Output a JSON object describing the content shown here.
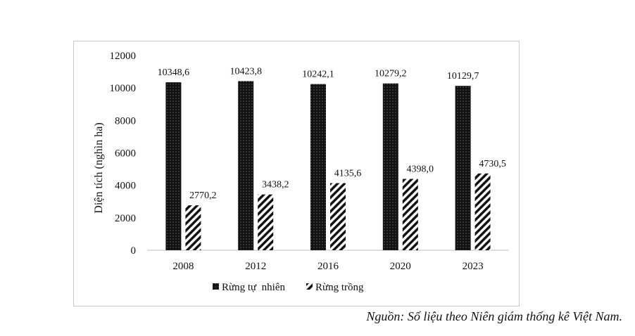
{
  "chart_data": {
    "type": "bar",
    "categories": [
      "2008",
      "2012",
      "2016",
      "2020",
      "2023"
    ],
    "series": [
      {
        "name": "Rừng tự  nhiên",
        "values": [
          10348.6,
          10423.8,
          10242.1,
          10279.2,
          10129.7
        ],
        "labels": [
          "10348,6",
          "10423,8",
          "10242,1",
          "10279,2",
          "10129,7"
        ],
        "pattern": "dotted-black"
      },
      {
        "name": "Rừng trồng",
        "values": [
          2770.2,
          3438.2,
          4135.6,
          4398.0,
          4730.5
        ],
        "labels": [
          "2770,2",
          "3438,2",
          "4135,6",
          "4398,0",
          "4730,5"
        ],
        "pattern": "diagonal-hatch"
      }
    ],
    "ylabel": "Diện tích (nghìn ha)",
    "xlabel": "",
    "ylim": [
      0,
      12000
    ],
    "yticks": [
      0,
      2000,
      4000,
      6000,
      8000,
      10000,
      12000
    ],
    "grid": false,
    "legend_position": "bottom"
  },
  "source_note": "Nguồn: Số liệu theo Niên giám thống kê Việt Nam.",
  "colors": {
    "bar_fill": "#111111",
    "axis": "#bfbfbf",
    "text": "#111111"
  }
}
